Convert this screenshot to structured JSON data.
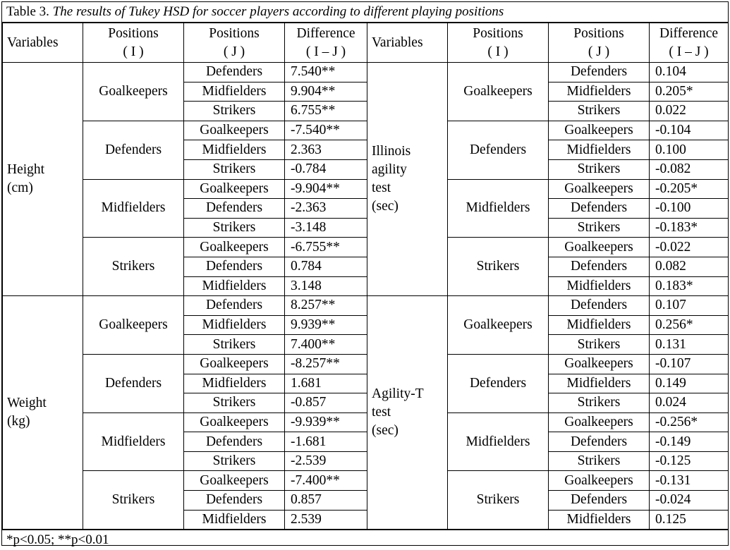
{
  "caption": {
    "label": "Table 3.",
    "title": "The results of Tukey HSD for soccer players according to different playing positions"
  },
  "headers": {
    "variables": "Variables",
    "positions_i_top": "Positions",
    "positions_i_bottom": "( I )",
    "positions_j_top": "Positions",
    "positions_j_bottom": "( J )",
    "difference_top": "Difference",
    "difference_bottom": "( I – J )"
  },
  "sections": [
    {
      "left": {
        "variable_lines": [
          "Height",
          "(cm)"
        ],
        "groups": [
          {
            "position_i": "Goalkeepers",
            "rows": [
              {
                "position_j": "Defenders",
                "difference": "7.540**"
              },
              {
                "position_j": "Midfielders",
                "difference": "9.904**"
              },
              {
                "position_j": "Strikers",
                "difference": "6.755**"
              }
            ]
          },
          {
            "position_i": "Defenders",
            "rows": [
              {
                "position_j": "Goalkeepers",
                "difference": "-7.540**"
              },
              {
                "position_j": "Midfielders",
                "difference": "2.363"
              },
              {
                "position_j": "Strikers",
                "difference": "-0.784"
              }
            ]
          },
          {
            "position_i": "Midfielders",
            "rows": [
              {
                "position_j": "Goalkeepers",
                "difference": "-9.904**"
              },
              {
                "position_j": "Defenders",
                "difference": "-2.363"
              },
              {
                "position_j": "Strikers",
                "difference": "-3.148"
              }
            ]
          },
          {
            "position_i": "Strikers",
            "rows": [
              {
                "position_j": "Goalkeepers",
                "difference": "-6.755**"
              },
              {
                "position_j": "Defenders",
                "difference": "0.784"
              },
              {
                "position_j": "Midfielders",
                "difference": "3.148"
              }
            ]
          }
        ]
      },
      "right": {
        "variable_lines": [
          "Illinois",
          "agility",
          "test",
          "(sec)"
        ],
        "groups": [
          {
            "position_i": "Goalkeepers",
            "rows": [
              {
                "position_j": "Defenders",
                "difference": "0.104"
              },
              {
                "position_j": "Midfielders",
                "difference": "0.205*"
              },
              {
                "position_j": "Strikers",
                "difference": "0.022"
              }
            ]
          },
          {
            "position_i": "Defenders",
            "rows": [
              {
                "position_j": "Goalkeepers",
                "difference": "-0.104"
              },
              {
                "position_j": "Midfielders",
                "difference": "0.100"
              },
              {
                "position_j": "Strikers",
                "difference": "-0.082"
              }
            ]
          },
          {
            "position_i": "Midfielders",
            "rows": [
              {
                "position_j": "Goalkeepers",
                "difference": "-0.205*"
              },
              {
                "position_j": "Defenders",
                "difference": "-0.100"
              },
              {
                "position_j": "Strikers",
                "difference": "-0.183*"
              }
            ]
          },
          {
            "position_i": "Strikers",
            "rows": [
              {
                "position_j": "Goalkeepers",
                "difference": "-0.022"
              },
              {
                "position_j": "Defenders",
                "difference": "0.082"
              },
              {
                "position_j": "Midfielders",
                "difference": "0.183*"
              }
            ]
          }
        ]
      }
    },
    {
      "left": {
        "variable_lines": [
          "Weight",
          "(kg)"
        ],
        "groups": [
          {
            "position_i": "Goalkeepers",
            "rows": [
              {
                "position_j": "Defenders",
                "difference": "8.257**"
              },
              {
                "position_j": "Midfielders",
                "difference": "9.939**"
              },
              {
                "position_j": "Strikers",
                "difference": "7.400**"
              }
            ]
          },
          {
            "position_i": "Defenders",
            "rows": [
              {
                "position_j": "Goalkeepers",
                "difference": "-8.257**"
              },
              {
                "position_j": "Midfielders",
                "difference": "1.681"
              },
              {
                "position_j": "Strikers",
                "difference": "-0.857"
              }
            ]
          },
          {
            "position_i": "Midfielders",
            "rows": [
              {
                "position_j": "Goalkeepers",
                "difference": "-9.939**"
              },
              {
                "position_j": "Defenders",
                "difference": "-1.681"
              },
              {
                "position_j": "Strikers",
                "difference": "-2.539"
              }
            ]
          },
          {
            "position_i": "Strikers",
            "rows": [
              {
                "position_j": "Goalkeepers",
                "difference": "-7.400**"
              },
              {
                "position_j": "Defenders",
                "difference": "0.857"
              },
              {
                "position_j": "Midfielders",
                "difference": "2.539"
              }
            ]
          }
        ]
      },
      "right": {
        "variable_lines": [
          "Agility-T",
          "test",
          "(sec)"
        ],
        "groups": [
          {
            "position_i": "Goalkeepers",
            "rows": [
              {
                "position_j": "Defenders",
                "difference": "0.107"
              },
              {
                "position_j": "Midfielders",
                "difference": "0.256*"
              },
              {
                "position_j": "Strikers",
                "difference": "0.131"
              }
            ]
          },
          {
            "position_i": "Defenders",
            "rows": [
              {
                "position_j": "Goalkeepers",
                "difference": "-0.107"
              },
              {
                "position_j": "Midfielders",
                "difference": "0.149"
              },
              {
                "position_j": "Strikers",
                "difference": "0.024"
              }
            ]
          },
          {
            "position_i": "Midfielders",
            "rows": [
              {
                "position_j": "Goalkeepers",
                "difference": "-0.256*"
              },
              {
                "position_j": "Defenders",
                "difference": "-0.149"
              },
              {
                "position_j": "Strikers",
                "difference": "-0.125"
              }
            ]
          },
          {
            "position_i": "Strikers",
            "rows": [
              {
                "position_j": "Goalkeepers",
                "difference": "-0.131"
              },
              {
                "position_j": "Defenders",
                "difference": "-0.024"
              },
              {
                "position_j": "Midfielders",
                "difference": "0.125"
              }
            ]
          }
        ]
      }
    }
  ],
  "footnote": "*p<0.05; **p<0.01"
}
